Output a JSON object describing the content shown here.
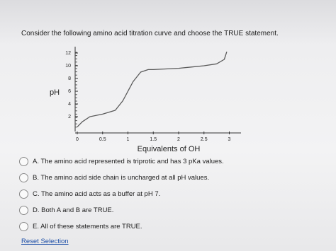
{
  "question": "Consider the following amino acid titration curve and choose the TRUE statement.",
  "chart_data": {
    "type": "line",
    "ylabel": "pH",
    "xlabel": "Equivalents of OH",
    "x": [
      0,
      0.1,
      0.25,
      0.5,
      0.75,
      0.9,
      1,
      1.1,
      1.25,
      1.4,
      1.5,
      1.75,
      2,
      2.25,
      2.5,
      2.75,
      2.9,
      2.95
    ],
    "series": [
      {
        "color": "#5a5a5a",
        "values": [
          0.4,
          1.2,
          2,
          2.4,
          3,
          4.5,
          6,
          7.5,
          9,
          9.4,
          9.4,
          9.5,
          9.6,
          9.8,
          10,
          10.3,
          11,
          12.2
        ]
      }
    ],
    "xlim": [
      -0.1,
      3.2
    ],
    "ylim": [
      -1,
      13
    ],
    "xticks": [
      0,
      0.5,
      1,
      1.5,
      2,
      2.5,
      3
    ],
    "yticks": [
      2,
      4,
      6,
      8,
      10,
      12
    ]
  },
  "options": [
    "A. The amino acid represented is triprotic and has 3 pKa values.",
    "B. The amino acid side chain is uncharged at all pH values.",
    "C. The amino acid acts as a buffer at pH 7.",
    "D. Both A and B are TRUE.",
    "E. All of these statements are TRUE."
  ],
  "reset": "Reset Selection"
}
